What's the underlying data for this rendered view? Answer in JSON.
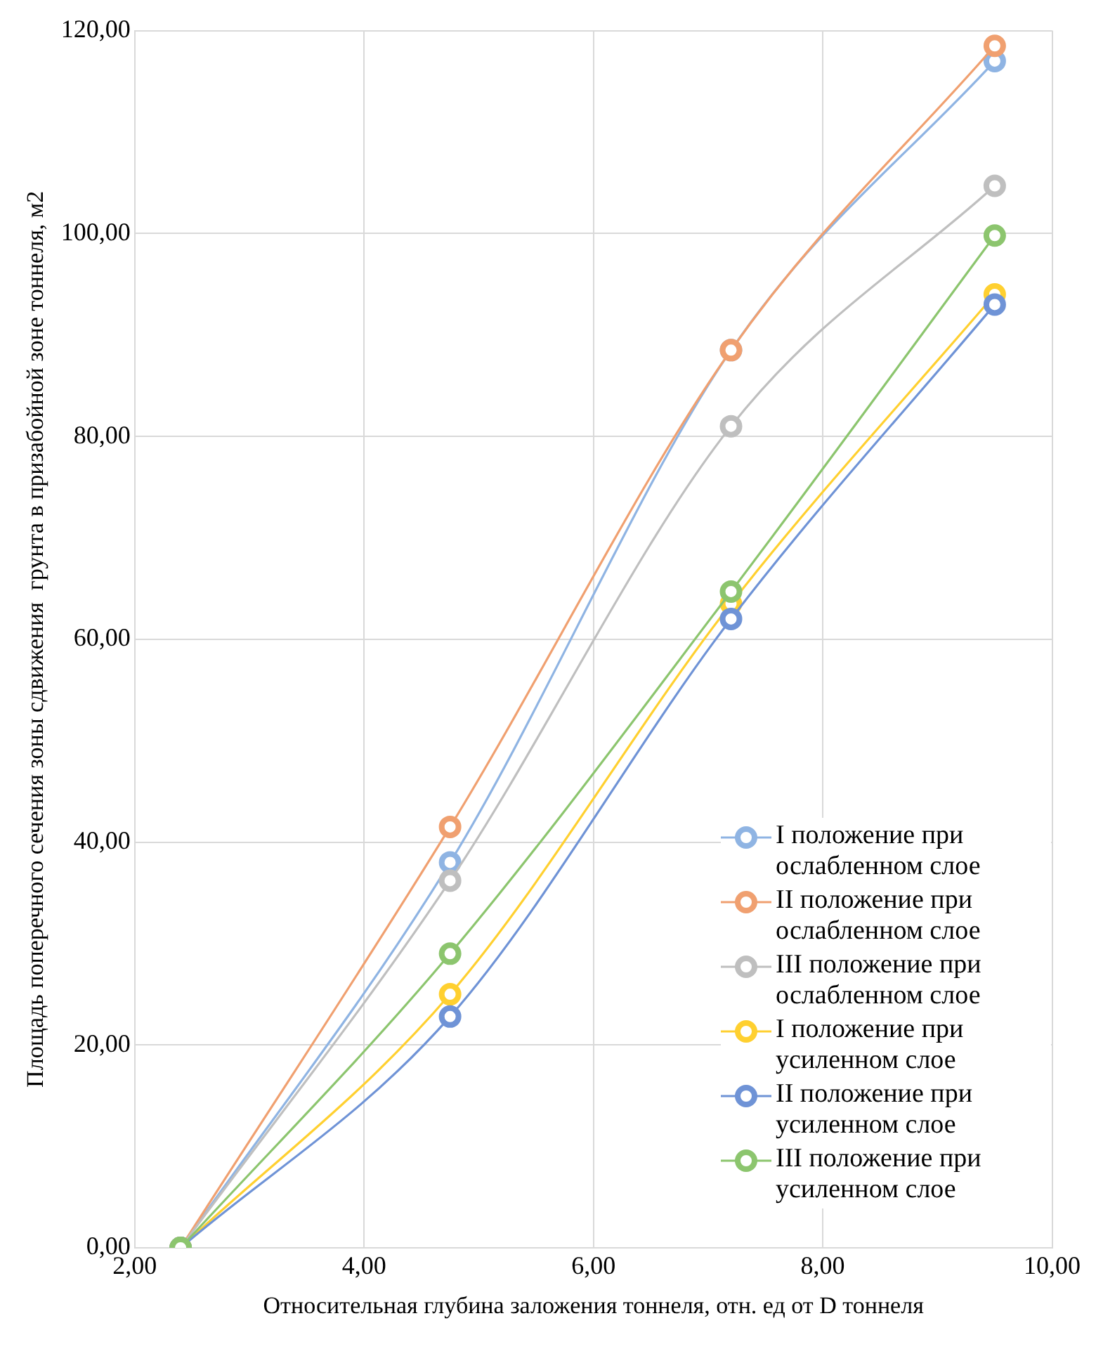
{
  "chart_data": {
    "type": "line",
    "xlabel": "Относительная глубина заложения тоннеля, отн. ед от D тоннеля",
    "ylabel": "Площадь поперечного сечения зоны сдвижения  грунта в призабойной зоне тоннеля, м2",
    "x": [
      2.4,
      4.75,
      7.2,
      9.5
    ],
    "series": [
      {
        "name": "I положение при ослабленном слое",
        "color": "#8fb4e3",
        "values": [
          0,
          38,
          88.5,
          117
        ]
      },
      {
        "name": "II положение при ослабленном слое",
        "color": "#f0a070",
        "values": [
          0,
          41.5,
          88.5,
          118.5
        ]
      },
      {
        "name": "III положение при ослабленном слое",
        "color": "#bfbfbf",
        "values": [
          0,
          36.2,
          81,
          104.7
        ]
      },
      {
        "name": "I положение при усиленном слое",
        "color": "#ffd030",
        "values": [
          0,
          25,
          63.5,
          94
        ]
      },
      {
        "name": "II положение при усиленном слое",
        "color": "#6f93d6",
        "values": [
          0,
          22.8,
          62,
          93
        ]
      },
      {
        "name": "III положение при усиленном слое",
        "color": "#8cc56e",
        "values": [
          0,
          29,
          64.7,
          99.8
        ]
      }
    ],
    "xlim": [
      2,
      10
    ],
    "xticks": [
      {
        "value": 2,
        "label": "2,00"
      },
      {
        "value": 4,
        "label": "4,00"
      },
      {
        "value": 6,
        "label": "6,00"
      },
      {
        "value": 8,
        "label": "8,00"
      },
      {
        "value": 10,
        "label": "10,00"
      }
    ],
    "ylim": [
      0,
      120
    ],
    "yticks": [
      {
        "value": 0,
        "label": "0,00"
      },
      {
        "value": 20,
        "label": "20,00"
      },
      {
        "value": 40,
        "label": "40,00"
      },
      {
        "value": 60,
        "label": "60,00"
      },
      {
        "value": 80,
        "label": "80,00"
      },
      {
        "value": 100,
        "label": "100,00"
      },
      {
        "value": 120,
        "label": "120,00"
      }
    ],
    "grid": true,
    "legend": "bottom right",
    "marker": "circle",
    "line_style": "solid"
  }
}
